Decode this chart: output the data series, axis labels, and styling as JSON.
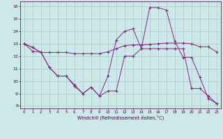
{
  "xlabel": "Windchill (Refroidissement éolien,°C)",
  "bg_color": "#cce8e8",
  "grid_color": "#aaccbb",
  "line_color": "#882288",
  "xlim": [
    -0.5,
    23.5
  ],
  "ylim": [
    7.8,
    16.4
  ],
  "yticks": [
    8,
    9,
    10,
    11,
    12,
    13,
    14,
    15,
    16
  ],
  "xticks": [
    0,
    1,
    2,
    3,
    4,
    5,
    6,
    7,
    8,
    9,
    10,
    11,
    12,
    13,
    14,
    15,
    16,
    17,
    18,
    19,
    20,
    21,
    22,
    23
  ],
  "series": [
    {
      "x": [
        0,
        1,
        2,
        3,
        4,
        5,
        6,
        7,
        8,
        9,
        10,
        11,
        12,
        13,
        14,
        15,
        16,
        17,
        18,
        19,
        20,
        21,
        22,
        23
      ],
      "y": [
        13.0,
        12.7,
        12.3,
        12.3,
        12.3,
        12.3,
        12.2,
        12.2,
        12.2,
        12.2,
        12.35,
        12.6,
        12.85,
        12.9,
        12.9,
        12.95,
        13.0,
        13.05,
        13.05,
        13.05,
        13.0,
        12.75,
        12.75,
        12.35
      ]
    },
    {
      "x": [
        0,
        1,
        2,
        3,
        4,
        5,
        6,
        7,
        8,
        9,
        10,
        11,
        12,
        13,
        14,
        15,
        16,
        17,
        18,
        19,
        20,
        21,
        22,
        23
      ],
      "y": [
        13.0,
        12.7,
        12.3,
        11.1,
        10.4,
        10.4,
        9.6,
        9.0,
        9.5,
        8.8,
        10.4,
        13.3,
        14.0,
        14.2,
        12.6,
        15.9,
        15.9,
        15.7,
        13.2,
        11.9,
        11.9,
        10.3,
        8.6,
        8.2
      ]
    },
    {
      "x": [
        0,
        1,
        2,
        3,
        4,
        5,
        6,
        7,
        8,
        9,
        10,
        11,
        12,
        13,
        14,
        15,
        16,
        17,
        18,
        19,
        20,
        21,
        22,
        23
      ],
      "y": [
        13.0,
        12.4,
        12.3,
        11.1,
        10.4,
        10.4,
        9.7,
        9.0,
        9.5,
        8.8,
        9.2,
        9.2,
        12.0,
        12.0,
        12.6,
        12.6,
        12.6,
        12.6,
        12.6,
        12.6,
        9.4,
        9.4,
        8.8,
        8.2
      ]
    }
  ]
}
